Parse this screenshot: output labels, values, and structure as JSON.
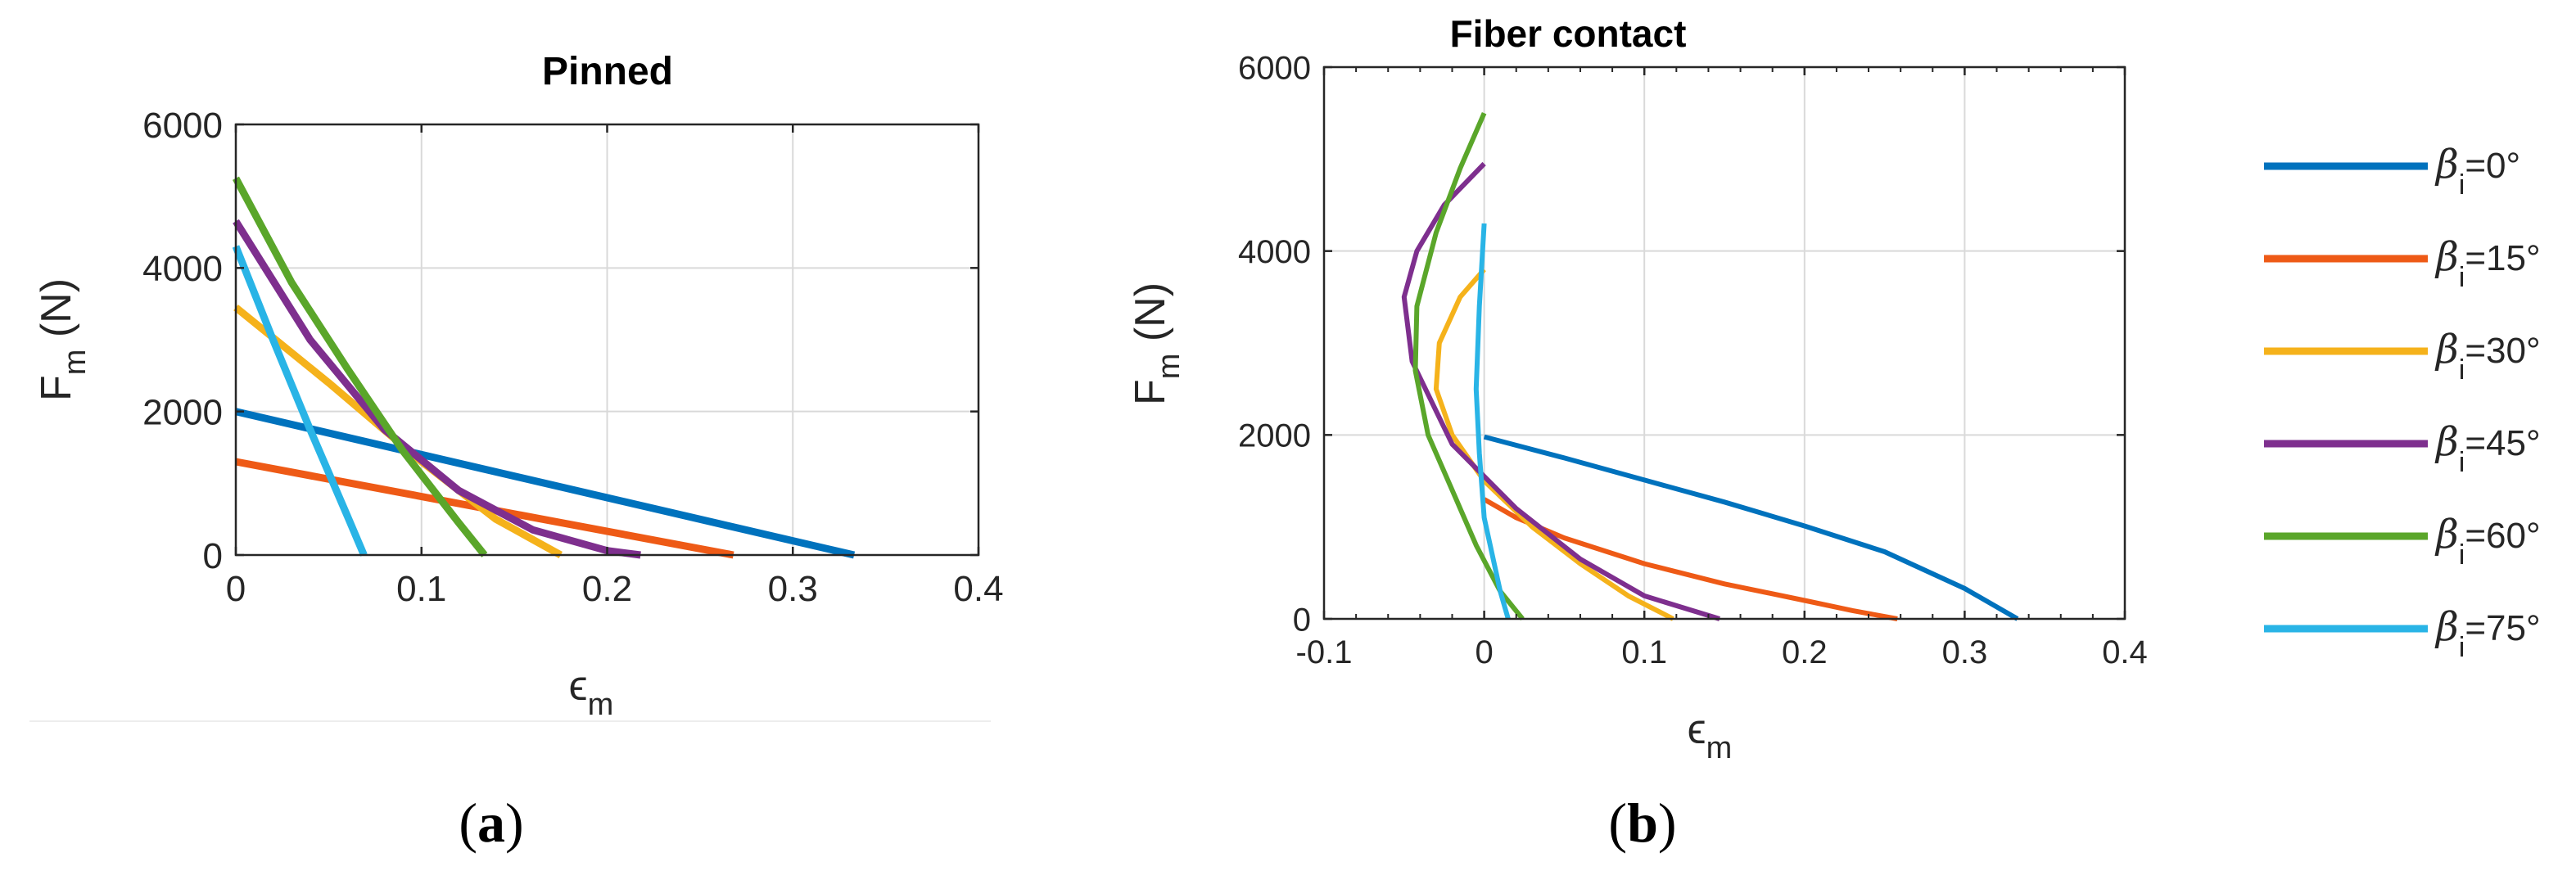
{
  "colors": {
    "s0": "#0072BD",
    "s15": "#EE5A16",
    "s30": "#F5B21B",
    "s45": "#7E2F8E",
    "s60": "#5AA62A",
    "s75": "#29B4E6",
    "grid": "#d9d9d9",
    "axis": "#262626"
  },
  "panel_labels": {
    "a": {
      "open": "(",
      "letter": "a",
      "close": ")"
    },
    "b": {
      "open": "(",
      "letter": "b",
      "close": ")"
    }
  },
  "legend": [
    {
      "symbol": "β",
      "sub": "i",
      "text": "=0°",
      "key": "s0"
    },
    {
      "symbol": "β",
      "sub": "i",
      "text": "=15°",
      "key": "s15"
    },
    {
      "symbol": "β",
      "sub": "i",
      "text": "=30°",
      "key": "s30"
    },
    {
      "symbol": "β",
      "sub": "i",
      "text": "=45°",
      "key": "s45"
    },
    {
      "symbol": "β",
      "sub": "i",
      "text": "=60°",
      "key": "s60"
    },
    {
      "symbol": "β",
      "sub": "i",
      "text": "=75°",
      "key": "s75"
    }
  ],
  "chart_data": [
    {
      "type": "line",
      "title": "Pinned",
      "xlabel": {
        "main": "ϵ",
        "sub": "m"
      },
      "ylabel": {
        "main": "F",
        "sub": "m",
        "unit": " (N)"
      },
      "xlim": [
        0,
        0.4
      ],
      "ylim": [
        0,
        6000
      ],
      "xticks": [
        "0",
        "0.1",
        "0.2",
        "0.3",
        "0.4"
      ],
      "xtick_values": [
        0,
        0.1,
        0.2,
        0.3,
        0.4
      ],
      "yticks": [
        "0",
        "2000",
        "4000",
        "6000"
      ],
      "ytick_values": [
        0,
        2000,
        4000,
        6000
      ],
      "grid": true,
      "series": [
        {
          "name": "βi=0°",
          "key": "s0",
          "x": [
            0,
            0.333
          ],
          "y": [
            2000,
            0
          ]
        },
        {
          "name": "βi=15°",
          "key": "s15",
          "x": [
            0,
            0.268
          ],
          "y": [
            1300,
            0
          ]
        },
        {
          "name": "βi=30°",
          "key": "s30",
          "x": [
            0,
            0.05,
            0.1,
            0.14,
            0.175
          ],
          "y": [
            3450,
            2400,
            1300,
            500,
            0
          ]
        },
        {
          "name": "βi=45°",
          "key": "s45",
          "x": [
            0,
            0.04,
            0.08,
            0.12,
            0.16,
            0.2,
            0.218
          ],
          "y": [
            4650,
            3000,
            1750,
            900,
            350,
            60,
            0
          ]
        },
        {
          "name": "βi=60°",
          "key": "s60",
          "x": [
            0,
            0.03,
            0.06,
            0.09,
            0.12,
            0.134
          ],
          "y": [
            5250,
            3800,
            2600,
            1450,
            450,
            0
          ]
        },
        {
          "name": "βi=75°",
          "key": "s75",
          "x": [
            0,
            0.02,
            0.04,
            0.06,
            0.069
          ],
          "y": [
            4300,
            3000,
            1750,
            550,
            0
          ]
        }
      ]
    },
    {
      "type": "line",
      "title": "Fiber contact",
      "xlabel": {
        "main": "ϵ",
        "sub": "m"
      },
      "ylabel": {
        "main": "F",
        "sub": "m",
        "unit": " (N)"
      },
      "xlim": [
        -0.1,
        0.4
      ],
      "ylim": [
        0,
        6000
      ],
      "xticks": [
        "-0.1",
        "0",
        "0.1",
        "0.2",
        "0.3",
        "0.4"
      ],
      "xtick_values": [
        -0.1,
        0,
        0.1,
        0.2,
        0.3,
        0.4
      ],
      "yticks": [
        "0",
        "2000",
        "4000",
        "6000"
      ],
      "ytick_values": [
        0,
        2000,
        4000,
        6000
      ],
      "grid": true,
      "legend_position": "outside-right",
      "series": [
        {
          "name": "βi=0°",
          "key": "s0",
          "x": [
            0,
            0.05,
            0.1,
            0.15,
            0.2,
            0.25,
            0.3,
            0.333
          ],
          "y": [
            1980,
            1750,
            1510,
            1270,
            1010,
            730,
            330,
            0
          ]
        },
        {
          "name": "βi=15°",
          "key": "s15",
          "x": [
            0,
            0.02,
            0.05,
            0.1,
            0.15,
            0.2,
            0.23,
            0.258
          ],
          "y": [
            1300,
            1100,
            880,
            600,
            380,
            200,
            90,
            0
          ]
        },
        {
          "name": "βi=30°",
          "key": "s30",
          "x": [
            0,
            -0.015,
            -0.028,
            -0.03,
            -0.02,
            0,
            0.03,
            0.06,
            0.09,
            0.118
          ],
          "y": [
            3800,
            3500,
            3000,
            2500,
            2000,
            1500,
            1000,
            600,
            250,
            0
          ]
        },
        {
          "name": "βi=45°",
          "key": "s45",
          "x": [
            0,
            -0.025,
            -0.042,
            -0.05,
            -0.045,
            -0.02,
            0.02,
            0.06,
            0.1,
            0.147
          ],
          "y": [
            4950,
            4500,
            4000,
            3500,
            2800,
            1900,
            1200,
            650,
            250,
            0
          ]
        },
        {
          "name": "βi=60°",
          "key": "s60",
          "x": [
            0,
            -0.015,
            -0.03,
            -0.042,
            -0.043,
            -0.035,
            -0.02,
            -0.005,
            0.01,
            0.024
          ],
          "y": [
            5500,
            4900,
            4200,
            3400,
            2700,
            2000,
            1400,
            800,
            300,
            0
          ]
        },
        {
          "name": "βi=75°",
          "key": "s75",
          "x": [
            0,
            -0.003,
            -0.005,
            -0.003,
            0,
            0.005,
            0.01,
            0.015
          ],
          "y": [
            4300,
            3400,
            2500,
            1800,
            1100,
            700,
            300,
            0
          ]
        }
      ]
    }
  ]
}
